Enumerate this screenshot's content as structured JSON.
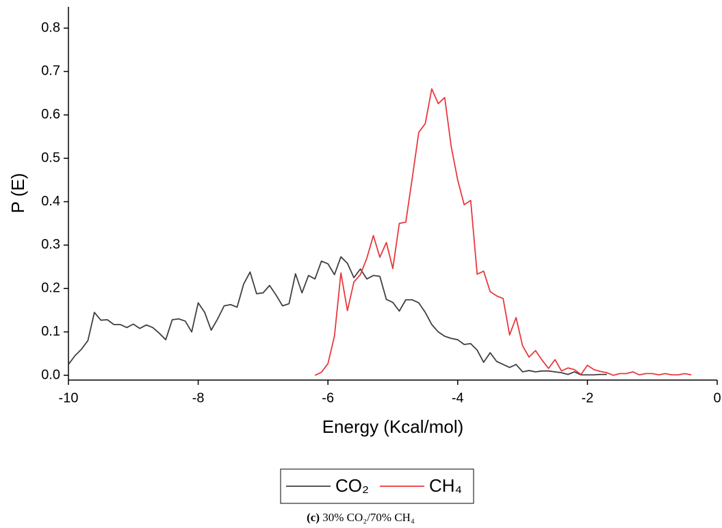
{
  "chart_data": {
    "type": "line",
    "x_label": "Energy (Kcal/mol)",
    "y_label": "P (E)",
    "caption_label": "(c)",
    "caption": "30% CO₂/70% CH₄",
    "xlim": [
      -10,
      0
    ],
    "xticks": [
      -10,
      -8,
      -6,
      -4,
      -2,
      0
    ],
    "ylim": [
      -0.011,
      0.849
    ],
    "yticks": [
      {
        "value": 0,
        "label": "0.0"
      },
      {
        "value": 0.1,
        "label": "0.1"
      },
      {
        "value": 0.2,
        "label": "0.2"
      },
      {
        "value": 0.3,
        "label": "0.3"
      },
      {
        "value": 0.4,
        "label": "0.4"
      },
      {
        "value": 0.5,
        "label": "0.5"
      },
      {
        "value": 0.6,
        "label": "0.6"
      },
      {
        "value": 0.7,
        "label": "0.7"
      },
      {
        "value": 0.8,
        "label": "0.8"
      }
    ],
    "grid": false,
    "legend": "bottom",
    "series": [
      {
        "name": "CO₂",
        "color": "#3f3f3f",
        "x": [
          -10,
          -9.9,
          -9.8,
          -9.7,
          -9.6,
          -9.5,
          -9.4,
          -9.3,
          -9.2,
          -9.1,
          -9,
          -8.9,
          -8.8,
          -8.7,
          -8.6,
          -8.5,
          -8.4,
          -8.3,
          -8.2,
          -8.1,
          -8,
          -7.9,
          -7.8,
          -7.7,
          -7.6,
          -7.5,
          -7.4,
          -7.3,
          -7.2,
          -7.1,
          -7,
          -6.9,
          -6.8,
          -6.7,
          -6.6,
          -6.5,
          -6.4,
          -6.3,
          -6.2,
          -6.1,
          -6,
          -5.9,
          -5.8,
          -5.7,
          -5.6,
          -5.5,
          -5.4,
          -5.3,
          -5.2,
          -5.1,
          -5,
          -4.9,
          -4.8,
          -4.7,
          -4.6,
          -4.5,
          -4.4,
          -4.3,
          -4.2,
          -4.1,
          -4,
          -3.9,
          -3.8,
          -3.7,
          -3.6,
          -3.5,
          -3.4,
          -3.3,
          -3.2,
          -3.1,
          -3,
          -2.9,
          -2.8,
          -2.7,
          -2.6,
          -2.5,
          -2.4,
          -2.3,
          -2.2,
          -2.1,
          -2,
          -1.9,
          -1.8,
          -1.7
        ],
        "values": [
          0.025,
          0.045,
          0.06,
          0.08,
          0.145,
          0.127,
          0.128,
          0.117,
          0.117,
          0.11,
          0.118,
          0.108,
          0.116,
          0.11,
          0.097,
          0.082,
          0.128,
          0.13,
          0.125,
          0.1,
          0.167,
          0.145,
          0.104,
          0.13,
          0.16,
          0.163,
          0.157,
          0.21,
          0.238,
          0.188,
          0.19,
          0.207,
          0.185,
          0.16,
          0.165,
          0.234,
          0.19,
          0.23,
          0.222,
          0.263,
          0.257,
          0.232,
          0.273,
          0.258,
          0.225,
          0.245,
          0.222,
          0.23,
          0.228,
          0.175,
          0.168,
          0.148,
          0.174,
          0.174,
          0.167,
          0.145,
          0.117,
          0.1,
          0.09,
          0.085,
          0.082,
          0.071,
          0.073,
          0.058,
          0.03,
          0.052,
          0.032,
          0.025,
          0.018,
          0.025,
          0.008,
          0.011,
          0.008,
          0.01,
          0.01,
          0.008,
          0.006,
          0.002,
          0.008,
          0.001,
          0.001,
          0.001,
          0.002,
          0.002
        ]
      },
      {
        "name": "CH₄",
        "color": "#e8383d",
        "x": [
          -6.2,
          -6.1,
          -6,
          -5.9,
          -5.8,
          -5.7,
          -5.6,
          -5.5,
          -5.4,
          -5.3,
          -5.2,
          -5.1,
          -5,
          -4.9,
          -4.8,
          -4.7,
          -4.6,
          -4.5,
          -4.4,
          -4.3,
          -4.2,
          -4.1,
          -4,
          -3.9,
          -3.8,
          -3.7,
          -3.6,
          -3.5,
          -3.4,
          -3.3,
          -3.2,
          -3.1,
          -3,
          -2.9,
          -2.8,
          -2.7,
          -2.6,
          -2.5,
          -2.4,
          -2.3,
          -2.2,
          -2.1,
          -2,
          -1.9,
          -1.8,
          -1.7,
          -1.6,
          -1.5,
          -1.4,
          -1.3,
          -1.2,
          -1.1,
          -1,
          -0.9,
          -0.8,
          -0.7,
          -0.6,
          -0.5,
          -0.4
        ],
        "values": [
          0,
          0.007,
          0.027,
          0.09,
          0.236,
          0.149,
          0.215,
          0.232,
          0.27,
          0.322,
          0.272,
          0.306,
          0.246,
          0.35,
          0.353,
          0.455,
          0.56,
          0.58,
          0.66,
          0.626,
          0.64,
          0.527,
          0.45,
          0.393,
          0.403,
          0.233,
          0.24,
          0.193,
          0.183,
          0.177,
          0.093,
          0.133,
          0.068,
          0.042,
          0.057,
          0.035,
          0.016,
          0.036,
          0.01,
          0.017,
          0.013,
          0.002,
          0.023,
          0.013,
          0.009,
          0.006,
          0,
          0.004,
          0.004,
          0.008,
          0.001,
          0.004,
          0.004,
          0.001,
          0.004,
          0.001,
          0.001,
          0.004,
          0.001
        ]
      }
    ]
  }
}
